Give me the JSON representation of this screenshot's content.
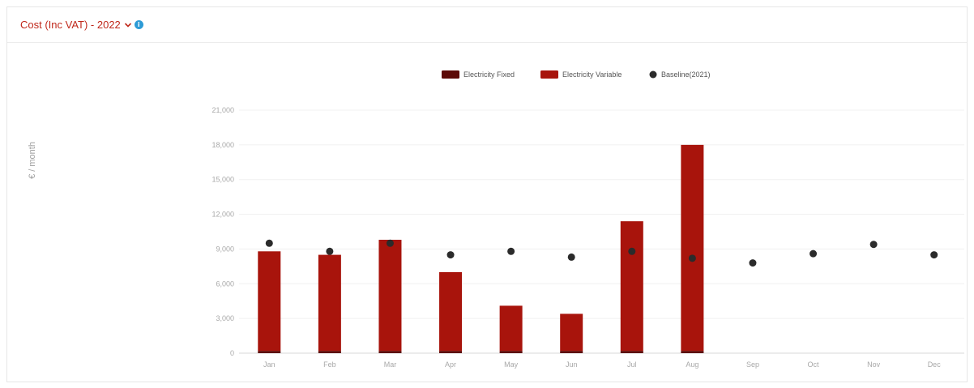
{
  "header": {
    "title": "Cost (Inc VAT) - 2022",
    "chevron_icon": "chevron-down-icon",
    "info_icon": "info-icon",
    "info_glyph": "i"
  },
  "colors": {
    "accent": "#c0281b",
    "electricity_fixed": "#5c0a07",
    "electricity_variable": "#a8140c",
    "baseline": "#2b2b2b",
    "info": "#2d9bd6"
  },
  "chart_data": {
    "type": "bar",
    "ylabel": "€ / month",
    "xlabel": "",
    "ylim": [
      0,
      21000
    ],
    "yticks": [
      0,
      3000,
      6000,
      9000,
      12000,
      15000,
      18000,
      21000
    ],
    "ytick_labels": [
      "0",
      "3,000",
      "6,000",
      "9,000",
      "12,000",
      "15,000",
      "18,000",
      "21,000"
    ],
    "categories": [
      "Jan",
      "Feb",
      "Mar",
      "Apr",
      "May",
      "Jun",
      "Jul",
      "Aug",
      "Sep",
      "Oct",
      "Nov",
      "Dec"
    ],
    "stacked": true,
    "grid": true,
    "legend_position": "top-center",
    "series": [
      {
        "name": "Electricity Fixed",
        "kind": "bar",
        "values": [
          200,
          200,
          200,
          200,
          200,
          200,
          200,
          200,
          null,
          null,
          null,
          null
        ]
      },
      {
        "name": "Electricity Variable",
        "kind": "bar",
        "values": [
          8600,
          8300,
          9600,
          6800,
          3900,
          3200,
          11200,
          17800,
          null,
          null,
          null,
          null
        ]
      },
      {
        "name": "Baseline(2021)",
        "kind": "scatter",
        "values": [
          9500,
          8800,
          9500,
          8500,
          8800,
          8300,
          8800,
          8200,
          7800,
          8600,
          9400,
          8500
        ]
      }
    ]
  }
}
